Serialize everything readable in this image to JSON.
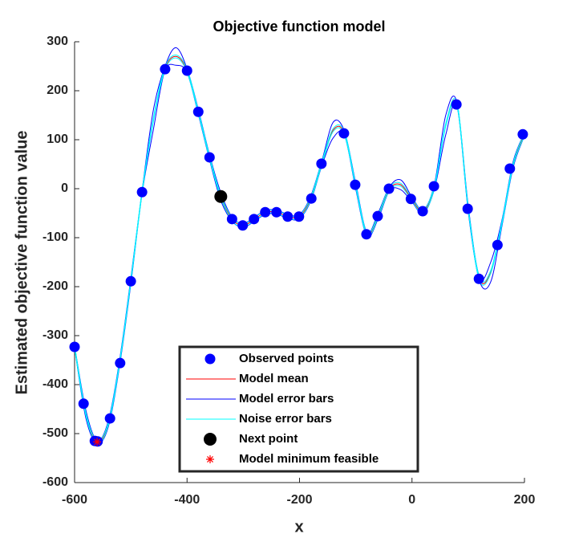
{
  "chart_data": {
    "type": "line",
    "title": "Objective function model",
    "xlabel": "x",
    "ylabel": "Estimated objective function value",
    "xlim": [
      -600,
      200
    ],
    "ylim": [
      -600,
      300
    ],
    "xticks": [
      -600,
      -400,
      -200,
      0,
      200
    ],
    "yticks": [
      -600,
      -500,
      -400,
      -300,
      -200,
      -100,
      0,
      100,
      200,
      300
    ],
    "legend": "bottom",
    "x": [
      -600,
      -580,
      -560,
      -540,
      -520,
      -500,
      -480,
      -460,
      -440,
      -420,
      -400,
      -380,
      -360,
      -340,
      -320,
      -300,
      -280,
      -260,
      -240,
      -220,
      -200,
      -180,
      -160,
      -140,
      -120,
      -100,
      -80,
      -60,
      -40,
      -20,
      0,
      20,
      40,
      60,
      80,
      100,
      120,
      140,
      160,
      180,
      200
    ],
    "series": [
      {
        "name": "Observed points",
        "color": "#0000ff",
        "marker": "circle",
        "x": [
          -600,
          -584,
          -564,
          -559,
          -537,
          -519,
          -500,
          -480,
          -439,
          -400,
          -380,
          -360,
          -320,
          -301,
          -281,
          -261,
          -241,
          -221,
          -201,
          -179,
          -161,
          -121,
          -101,
          -81,
          -61,
          -41,
          -2,
          19,
          39,
          79,
          99,
          119,
          152,
          174,
          197
        ],
        "values": [
          -323,
          -439,
          -515,
          -516,
          -469,
          -356,
          -189,
          -7,
          244,
          241,
          157,
          64,
          -62,
          -75,
          -62,
          -48,
          -48,
          -57,
          -57,
          -20,
          51,
          113,
          8,
          -93,
          -56,
          0,
          -21,
          -46,
          5,
          172,
          -41,
          -184,
          -115,
          41,
          111
        ]
      },
      {
        "name": "Model mean",
        "color": "#ff0000",
        "values": [
          -323,
          -460,
          -517,
          -480,
          -356,
          -189,
          -7,
          140,
          243,
          270,
          241,
          157,
          64,
          -16,
          -62,
          -75,
          -62,
          -48,
          -48,
          -57,
          -57,
          -20,
          53,
          120,
          113,
          5,
          -93,
          -55,
          0,
          8,
          -22,
          -47,
          5,
          130,
          172,
          -41,
          -184,
          -170,
          -70,
          50,
          111
        ]
      },
      {
        "name": "Model error bars",
        "color": "#0000ff",
        "upper": [
          -321,
          -452,
          -514,
          -474,
          -350,
          -183,
          -4,
          160,
          247,
          288,
          245,
          162,
          69,
          -8,
          -58,
          -71,
          -58,
          -44,
          -44,
          -53,
          -53,
          -15,
          58,
          136,
          117,
          11,
          -89,
          -49,
          4,
          18,
          -17,
          -43,
          10,
          150,
          176,
          -35,
          -180,
          -150,
          -64,
          56,
          114
        ],
        "lower": [
          -325,
          -468,
          -520,
          -486,
          -362,
          -195,
          -10,
          120,
          239,
          252,
          237,
          152,
          59,
          -24,
          -66,
          -79,
          -66,
          -52,
          -52,
          -61,
          -61,
          -25,
          48,
          104,
          109,
          -1,
          -97,
          -61,
          -4,
          -2,
          -27,
          -51,
          0,
          110,
          168,
          -47,
          -188,
          -190,
          -76,
          44,
          108
        ]
      },
      {
        "name": "Noise error bars",
        "color": "#00ffff",
        "upper": [
          -320,
          -457,
          -514,
          -477,
          -353,
          -186,
          -4,
          143,
          246,
          273,
          244,
          160,
          67,
          -13,
          -59,
          -72,
          -59,
          -45,
          -45,
          -54,
          -54,
          -17,
          56,
          123,
          116,
          8,
          -90,
          -52,
          3,
          11,
          -19,
          -44,
          8,
          133,
          175,
          -38,
          -181,
          -167,
          -67,
          53,
          114
        ],
        "lower": [
          -326,
          -463,
          -520,
          -483,
          -359,
          -192,
          -10,
          137,
          240,
          267,
          238,
          154,
          61,
          -19,
          -65,
          -78,
          -65,
          -51,
          -51,
          -60,
          -60,
          -23,
          50,
          117,
          110,
          2,
          -96,
          -58,
          -3,
          5,
          -25,
          -50,
          2,
          127,
          169,
          -44,
          -187,
          -173,
          -73,
          47,
          108
        ]
      },
      {
        "name": "Next point",
        "color": "#000000",
        "marker": "circle",
        "x": [
          -340
        ],
        "values": [
          -16
        ]
      },
      {
        "name": "Model minimum feasible",
        "color": "#ff0000",
        "marker": "star",
        "x": [
          -560
        ],
        "values": [
          -517
        ]
      }
    ]
  }
}
